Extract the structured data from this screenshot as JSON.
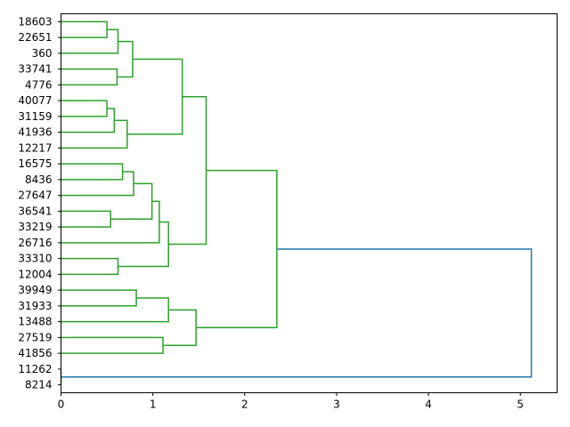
{
  "chart_data": {
    "type": "dendrogram",
    "orientation": "horizontal",
    "title": "",
    "xlabel": "",
    "ylabel": "",
    "xlim": [
      0,
      5.4
    ],
    "xticks": [
      0,
      1,
      2,
      3,
      4,
      5
    ],
    "xtick_labels": [
      "0",
      "1",
      "2",
      "3",
      "4",
      "5"
    ],
    "leaves": [
      "18603",
      "22651",
      "360",
      "33741",
      "4776",
      "40077",
      "31159",
      "41936",
      "12217",
      "16575",
      "8436",
      "27647",
      "36541",
      "33219",
      "26716",
      "33310",
      "12004",
      "39949",
      "31933",
      "13488",
      "27519",
      "41856",
      "11262",
      "8214"
    ],
    "colors": {
      "cluster": "#2ca02c",
      "root": "#1f77b4",
      "axis": "#000000"
    },
    "merges": [
      {
        "a": "18603",
        "b": "22651",
        "height": 0.5
      },
      {
        "a": "c1",
        "b": "360",
        "height": 0.62
      },
      {
        "a": "33741",
        "b": "4776",
        "height": 0.61
      },
      {
        "a": "c2",
        "b": "c3",
        "height": 0.78
      },
      {
        "a": "40077",
        "b": "31159",
        "height": 0.5
      },
      {
        "a": "c5",
        "b": "41936",
        "height": 0.58
      },
      {
        "a": "c6",
        "b": "12217",
        "height": 0.72
      },
      {
        "a": "c4",
        "b": "c7",
        "height": 1.32
      },
      {
        "a": "16575",
        "b": "8436",
        "height": 0.67
      },
      {
        "a": "c9",
        "b": "27647",
        "height": 0.79
      },
      {
        "a": "36541",
        "b": "33219",
        "height": 0.54
      },
      {
        "a": "c10",
        "b": "c11",
        "height": 0.99
      },
      {
        "a": "c12",
        "b": "26716",
        "height": 1.07
      },
      {
        "a": "33310",
        "b": "12004",
        "height": 0.62
      },
      {
        "a": "c13",
        "b": "c14",
        "height": 1.17
      },
      {
        "a": "c8",
        "b": "c15",
        "height": 1.58
      },
      {
        "a": "39949",
        "b": "31933",
        "height": 0.82
      },
      {
        "a": "c17",
        "b": "13488",
        "height": 1.17
      },
      {
        "a": "27519",
        "b": "41856",
        "height": 1.11
      },
      {
        "a": "c18",
        "b": "c19",
        "height": 1.47
      },
      {
        "a": "c16",
        "b": "c20",
        "height": 2.35
      },
      {
        "a": "11262",
        "b": "8214",
        "height": 0.0
      },
      {
        "a": "c21",
        "b": "c22",
        "height": 5.12,
        "color": "root"
      }
    ]
  }
}
